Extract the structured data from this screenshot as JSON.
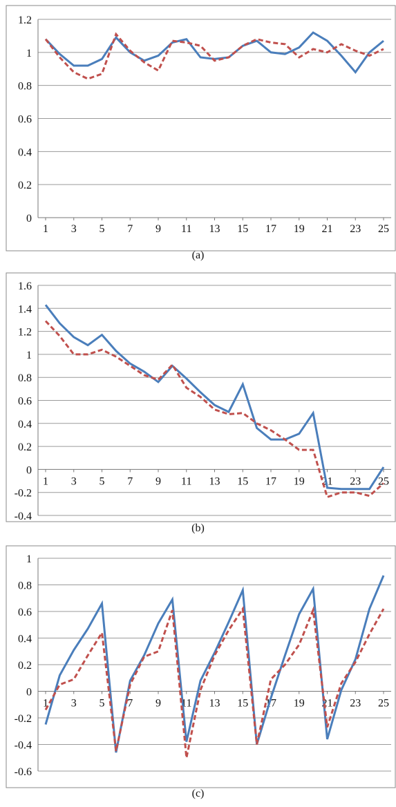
{
  "chart_data": [
    {
      "type": "line",
      "caption": "(a)",
      "x": [
        1,
        2,
        3,
        4,
        5,
        6,
        7,
        8,
        9,
        10,
        11,
        12,
        13,
        14,
        15,
        16,
        17,
        18,
        19,
        20,
        21,
        22,
        23,
        24,
        25
      ],
      "x_tick_labels": [
        "1",
        "3",
        "5",
        "7",
        "9",
        "11",
        "13",
        "15",
        "17",
        "19",
        "21",
        "23",
        "25"
      ],
      "ylim": [
        0,
        1.2
      ],
      "y_tick_labels": [
        "0",
        "0.2",
        "0.4",
        "0.6",
        "0.8",
        "1",
        "1.2"
      ],
      "grid": true,
      "series": [
        {
          "style": "solid",
          "color": "#4a7ebb",
          "values": [
            1.08,
            0.99,
            0.92,
            0.92,
            0.96,
            1.09,
            1.0,
            0.95,
            0.98,
            1.06,
            1.08,
            0.97,
            0.96,
            0.97,
            1.04,
            1.07,
            1.0,
            0.99,
            1.03,
            1.12,
            1.07,
            0.98,
            0.88,
            1.0,
            1.07
          ]
        },
        {
          "style": "dashed",
          "color": "#c0504d",
          "values": [
            1.08,
            0.97,
            0.88,
            0.84,
            0.87,
            1.11,
            1.01,
            0.94,
            0.89,
            1.07,
            1.06,
            1.04,
            0.95,
            0.97,
            1.04,
            1.08,
            1.06,
            1.05,
            0.97,
            1.02,
            1.0,
            1.05,
            1.01,
            0.98,
            1.02
          ]
        }
      ]
    },
    {
      "type": "line",
      "caption": "(b)",
      "x": [
        1,
        2,
        3,
        4,
        5,
        6,
        7,
        8,
        9,
        10,
        11,
        12,
        13,
        14,
        15,
        16,
        17,
        18,
        19,
        20,
        21,
        22,
        23,
        24,
        25
      ],
      "x_tick_labels": [
        "1",
        "3",
        "5",
        "7",
        "9",
        "11",
        "13",
        "15",
        "17",
        "19",
        "21",
        "23",
        "25"
      ],
      "ylim": [
        -0.4,
        1.6
      ],
      "y_tick_labels": [
        "-0.4",
        "-0.2",
        "0",
        "0.2",
        "0.4",
        "0.6",
        "0.8",
        "1",
        "1.2",
        "1.4",
        "1.6"
      ],
      "grid": true,
      "series": [
        {
          "style": "solid",
          "color": "#4a7ebb",
          "values": [
            1.43,
            1.27,
            1.15,
            1.08,
            1.17,
            1.03,
            0.92,
            0.85,
            0.76,
            0.9,
            0.79,
            0.67,
            0.56,
            0.5,
            0.74,
            0.36,
            0.26,
            0.26,
            0.31,
            0.49,
            -0.16,
            -0.17,
            -0.17,
            -0.17,
            0.02
          ]
        },
        {
          "style": "dashed",
          "color": "#c0504d",
          "values": [
            1.29,
            1.16,
            1.0,
            1.0,
            1.04,
            0.98,
            0.9,
            0.82,
            0.78,
            0.91,
            0.71,
            0.63,
            0.52,
            0.48,
            0.49,
            0.4,
            0.34,
            0.26,
            0.17,
            0.17,
            -0.24,
            -0.2,
            -0.2,
            -0.23,
            -0.12
          ]
        }
      ]
    },
    {
      "type": "line",
      "caption": "(c)",
      "x": [
        1,
        2,
        3,
        4,
        5,
        6,
        7,
        8,
        9,
        10,
        11,
        12,
        13,
        14,
        15,
        16,
        17,
        18,
        19,
        20,
        21,
        22,
        23,
        24,
        25
      ],
      "x_tick_labels": [
        "1",
        "3",
        "5",
        "7",
        "9",
        "11",
        "13",
        "15",
        "17",
        "19",
        "21",
        "23",
        "25"
      ],
      "ylim": [
        -0.6,
        1.0
      ],
      "y_tick_labels": [
        "-0.6",
        "-0.4",
        "-0.2",
        "0",
        "0.2",
        "0.4",
        "0.6",
        "0.8",
        "1"
      ],
      "grid": true,
      "series": [
        {
          "style": "solid",
          "color": "#4a7ebb",
          "values": [
            -0.25,
            0.12,
            0.31,
            0.47,
            0.66,
            -0.46,
            0.08,
            0.27,
            0.51,
            0.69,
            -0.38,
            0.08,
            0.29,
            0.52,
            0.76,
            -0.4,
            -0.05,
            0.27,
            0.58,
            0.77,
            -0.36,
            0.01,
            0.24,
            0.62,
            0.87
          ]
        },
        {
          "style": "dashed",
          "color": "#c0504d",
          "values": [
            -0.14,
            0.05,
            0.09,
            0.27,
            0.44,
            -0.45,
            0.05,
            0.26,
            0.3,
            0.61,
            -0.5,
            0.01,
            0.27,
            0.46,
            0.62,
            -0.4,
            0.09,
            0.2,
            0.35,
            0.61,
            -0.27,
            0.06,
            0.22,
            0.43,
            0.62
          ]
        }
      ]
    }
  ]
}
